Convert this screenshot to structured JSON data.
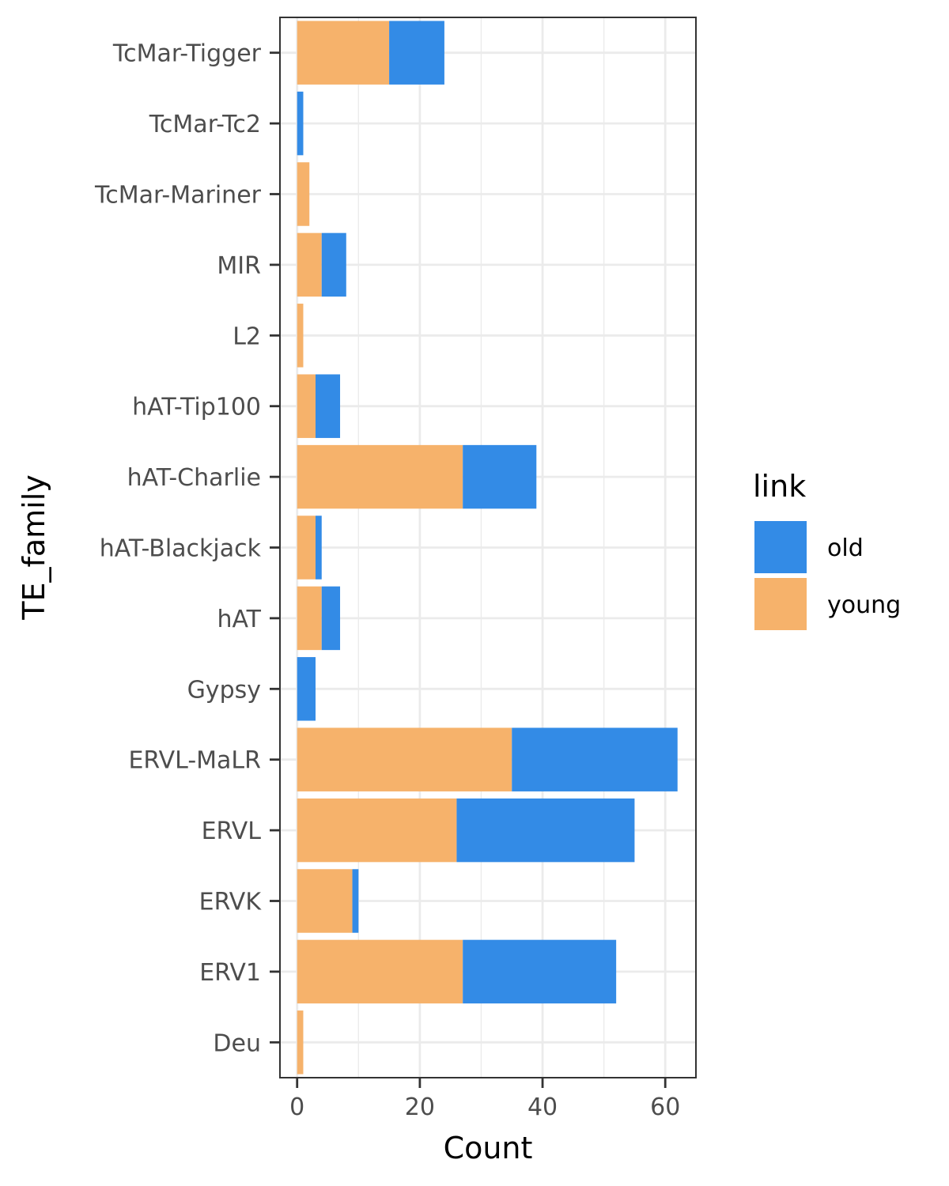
{
  "chart_data": {
    "type": "bar",
    "orientation": "horizontal",
    "stacked": true,
    "categories": [
      "Deu",
      "ERV1",
      "ERVK",
      "ERVL",
      "ERVL-MaLR",
      "Gypsy",
      "hAT",
      "hAT-Blackjack",
      "hAT-Charlie",
      "hAT-Tip100",
      "L2",
      "MIR",
      "TcMar-Mariner",
      "TcMar-Tc2",
      "TcMar-Tigger"
    ],
    "series": [
      {
        "name": "young",
        "color": "#F6B26B",
        "values": [
          1,
          27,
          9,
          26,
          35,
          0,
          4,
          3,
          27,
          3,
          1,
          4,
          2,
          0,
          15
        ]
      },
      {
        "name": "old",
        "color": "#338BE6",
        "values": [
          0,
          25,
          1,
          29,
          27,
          3,
          3,
          1,
          12,
          4,
          0,
          4,
          0,
          1,
          9
        ]
      }
    ],
    "xlabel": "Count",
    "ylabel": "TE_family",
    "xlim": [
      -2.8,
      65
    ],
    "xticks": [
      0,
      20,
      40,
      60
    ],
    "grid": true,
    "legend": {
      "title": "link",
      "position": "right",
      "entries": [
        {
          "label": "old",
          "color": "#338BE6"
        },
        {
          "label": "young",
          "color": "#F6B26B"
        }
      ]
    }
  }
}
